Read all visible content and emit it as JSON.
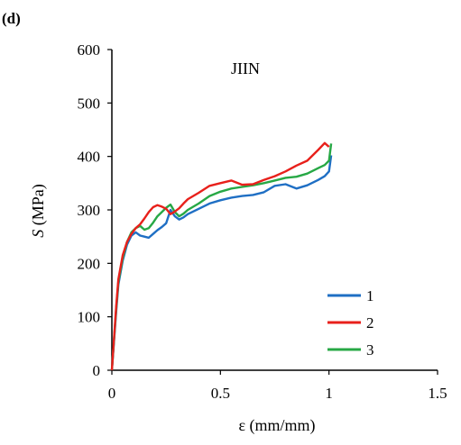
{
  "chart_data": {
    "type": "line",
    "panel_label": "(d)",
    "title": "JIIN",
    "xlabel": "ε (mm/mm)",
    "ylabel_symbol": "S",
    "ylabel_unit": " (MPa)",
    "xlim": [
      0,
      1.5
    ],
    "ylim": [
      0,
      600
    ],
    "x_ticks": [
      0,
      0.5,
      1,
      1.5
    ],
    "x_tick_labels": [
      "0",
      "0.5",
      "1",
      "1.5"
    ],
    "y_ticks": [
      0,
      100,
      200,
      300,
      400,
      500,
      600
    ],
    "y_tick_labels": [
      "0",
      "100",
      "200",
      "300",
      "400",
      "500",
      "600"
    ],
    "grid": false,
    "legend_position": "bottom-right",
    "series": [
      {
        "name": "1",
        "color": "#1f6fc4",
        "points": [
          [
            0,
            0
          ],
          [
            0.01,
            55
          ],
          [
            0.02,
            110
          ],
          [
            0.03,
            160
          ],
          [
            0.05,
            205
          ],
          [
            0.07,
            235
          ],
          [
            0.09,
            252
          ],
          [
            0.11,
            258
          ],
          [
            0.13,
            252
          ],
          [
            0.15,
            250
          ],
          [
            0.17,
            248
          ],
          [
            0.19,
            255
          ],
          [
            0.21,
            262
          ],
          [
            0.23,
            268
          ],
          [
            0.25,
            275
          ],
          [
            0.27,
            300
          ],
          [
            0.29,
            288
          ],
          [
            0.31,
            282
          ],
          [
            0.33,
            286
          ],
          [
            0.35,
            292
          ],
          [
            0.4,
            302
          ],
          [
            0.45,
            312
          ],
          [
            0.5,
            318
          ],
          [
            0.55,
            323
          ],
          [
            0.6,
            326
          ],
          [
            0.65,
            328
          ],
          [
            0.7,
            333
          ],
          [
            0.75,
            345
          ],
          [
            0.8,
            348
          ],
          [
            0.85,
            340
          ],
          [
            0.9,
            346
          ],
          [
            0.95,
            356
          ],
          [
            0.98,
            363
          ],
          [
            1.0,
            372
          ],
          [
            1.01,
            402
          ]
        ]
      },
      {
        "name": "2",
        "color": "#e8201b",
        "points": [
          [
            0,
            0
          ],
          [
            0.01,
            60
          ],
          [
            0.02,
            120
          ],
          [
            0.03,
            170
          ],
          [
            0.05,
            215
          ],
          [
            0.07,
            240
          ],
          [
            0.09,
            255
          ],
          [
            0.11,
            266
          ],
          [
            0.13,
            273
          ],
          [
            0.15,
            284
          ],
          [
            0.17,
            296
          ],
          [
            0.19,
            305
          ],
          [
            0.21,
            309
          ],
          [
            0.23,
            306
          ],
          [
            0.25,
            302
          ],
          [
            0.27,
            292
          ],
          [
            0.29,
            297
          ],
          [
            0.31,
            303
          ],
          [
            0.33,
            312
          ],
          [
            0.35,
            320
          ],
          [
            0.4,
            332
          ],
          [
            0.45,
            345
          ],
          [
            0.5,
            350
          ],
          [
            0.55,
            355
          ],
          [
            0.6,
            347
          ],
          [
            0.65,
            348
          ],
          [
            0.7,
            356
          ],
          [
            0.75,
            363
          ],
          [
            0.8,
            372
          ],
          [
            0.85,
            383
          ],
          [
            0.9,
            392
          ],
          [
            0.95,
            412
          ],
          [
            0.98,
            425
          ],
          [
            1.0,
            418
          ]
        ]
      },
      {
        "name": "3",
        "color": "#27a845",
        "points": [
          [
            0,
            0
          ],
          [
            0.01,
            58
          ],
          [
            0.02,
            115
          ],
          [
            0.03,
            165
          ],
          [
            0.05,
            210
          ],
          [
            0.07,
            240
          ],
          [
            0.09,
            258
          ],
          [
            0.11,
            266
          ],
          [
            0.13,
            270
          ],
          [
            0.15,
            263
          ],
          [
            0.17,
            266
          ],
          [
            0.19,
            276
          ],
          [
            0.21,
            288
          ],
          [
            0.23,
            296
          ],
          [
            0.25,
            304
          ],
          [
            0.27,
            310
          ],
          [
            0.29,
            296
          ],
          [
            0.31,
            288
          ],
          [
            0.33,
            293
          ],
          [
            0.35,
            300
          ],
          [
            0.4,
            312
          ],
          [
            0.45,
            326
          ],
          [
            0.5,
            334
          ],
          [
            0.55,
            340
          ],
          [
            0.6,
            343
          ],
          [
            0.65,
            346
          ],
          [
            0.7,
            350
          ],
          [
            0.75,
            355
          ],
          [
            0.8,
            360
          ],
          [
            0.85,
            362
          ],
          [
            0.9,
            368
          ],
          [
            0.95,
            378
          ],
          [
            0.98,
            384
          ],
          [
            1.0,
            392
          ],
          [
            1.01,
            424
          ]
        ]
      }
    ]
  }
}
